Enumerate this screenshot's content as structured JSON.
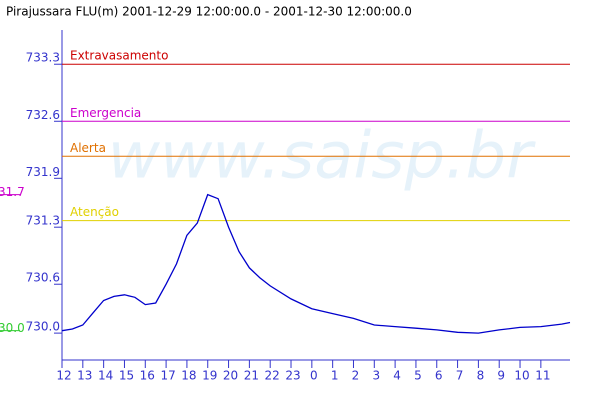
{
  "chart_data": {
    "type": "line",
    "title": "Pirajussara FLU(m) 2001-12-29 12:00:00.0 - 2001-12-30 12:00:00.0",
    "watermark": "www.saisp.br",
    "xlim": [
      0,
      24.4
    ],
    "ylim": [
      729.67,
      733.72
    ],
    "xticks": [
      {
        "value": 0,
        "label": "12"
      },
      {
        "value": 1,
        "label": "13"
      },
      {
        "value": 2,
        "label": "14"
      },
      {
        "value": 3,
        "label": "15"
      },
      {
        "value": 4,
        "label": "16"
      },
      {
        "value": 5,
        "label": "17"
      },
      {
        "value": 6,
        "label": "18"
      },
      {
        "value": 7,
        "label": "19"
      },
      {
        "value": 8,
        "label": "20"
      },
      {
        "value": 9,
        "label": "21"
      },
      {
        "value": 10,
        "label": "22"
      },
      {
        "value": 11,
        "label": "23"
      },
      {
        "value": 12,
        "label": "0"
      },
      {
        "value": 13,
        "label": "1"
      },
      {
        "value": 14,
        "label": "2"
      },
      {
        "value": 15,
        "label": "3"
      },
      {
        "value": 16,
        "label": "4"
      },
      {
        "value": 17,
        "label": "5"
      },
      {
        "value": 18,
        "label": "6"
      },
      {
        "value": 19,
        "label": "7"
      },
      {
        "value": 20,
        "label": "8"
      },
      {
        "value": 21,
        "label": "9"
      },
      {
        "value": 22,
        "label": "10"
      },
      {
        "value": 23,
        "label": "11"
      }
    ],
    "yticks": [
      {
        "value": 730.0,
        "label": "730.0"
      },
      730.6,
      731.3,
      731.9,
      732.6,
      733.3
    ],
    "series": [
      {
        "color": "#0000cc",
        "x": [
          0,
          0.5,
          1,
          1.5,
          2,
          2.5,
          3,
          3.5,
          4,
          4.5,
          5,
          5.5,
          6,
          6.5,
          7,
          7.5,
          8,
          8.5,
          9,
          9.5,
          10,
          11,
          12,
          13,
          14,
          15,
          16,
          17,
          18,
          19,
          20,
          21,
          22,
          23,
          24,
          24.4
        ],
        "values": [
          730.03,
          730.05,
          730.1,
          730.25,
          730.4,
          730.45,
          730.47,
          730.44,
          730.35,
          730.37,
          730.6,
          730.85,
          731.2,
          731.35,
          731.7,
          731.65,
          731.3,
          731.0,
          730.8,
          730.68,
          730.58,
          730.42,
          730.3,
          730.24,
          730.18,
          730.1,
          730.08,
          730.06,
          730.04,
          730.01,
          730.0,
          730.04,
          730.07,
          730.08,
          730.11,
          730.13
        ]
      }
    ],
    "thresholds": [
      {
        "label": "Extravasamento",
        "value": 733.3,
        "color": "#cc0000"
      },
      {
        "label": "Emergencia",
        "value": 732.6,
        "color": "#cc00cc"
      },
      {
        "label": "Alerta",
        "value": 732.17,
        "color": "#e07000"
      },
      {
        "label": "Atenção",
        "value": 731.38,
        "color": "#e0d000"
      }
    ],
    "extremes": [
      {
        "value": 731.7,
        "label": "31.7",
        "color": "#cc00cc"
      },
      {
        "value": 730.03,
        "label": "30.0",
        "color": "#33cc33"
      }
    ]
  }
}
